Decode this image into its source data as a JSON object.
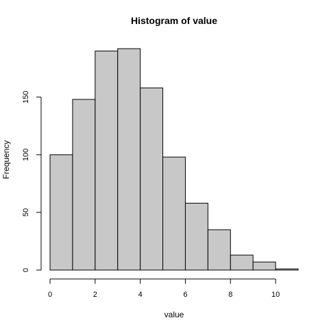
{
  "chart_data": {
    "type": "bar",
    "title": "Histogram of value",
    "xlabel": "value",
    "ylabel": "Frequency",
    "bin_edges": [
      0,
      1,
      2,
      3,
      4,
      5,
      6,
      7,
      8,
      9,
      10,
      11
    ],
    "values": [
      100,
      148,
      190,
      192,
      158,
      98,
      58,
      35,
      13,
      7,
      1
    ],
    "xlim": [
      0,
      11
    ],
    "ylim": [
      0,
      192
    ],
    "x_ticks": [
      0,
      2,
      4,
      6,
      8,
      10
    ],
    "y_ticks": [
      0,
      50,
      100,
      150
    ],
    "x_tick_labels": [
      "0",
      "2",
      "4",
      "6",
      "8",
      "10"
    ],
    "y_tick_labels": [
      "0",
      "50",
      "100",
      "150"
    ],
    "bar_fill": "#c8c8c8",
    "bar_stroke": "#000000",
    "grid": false
  }
}
